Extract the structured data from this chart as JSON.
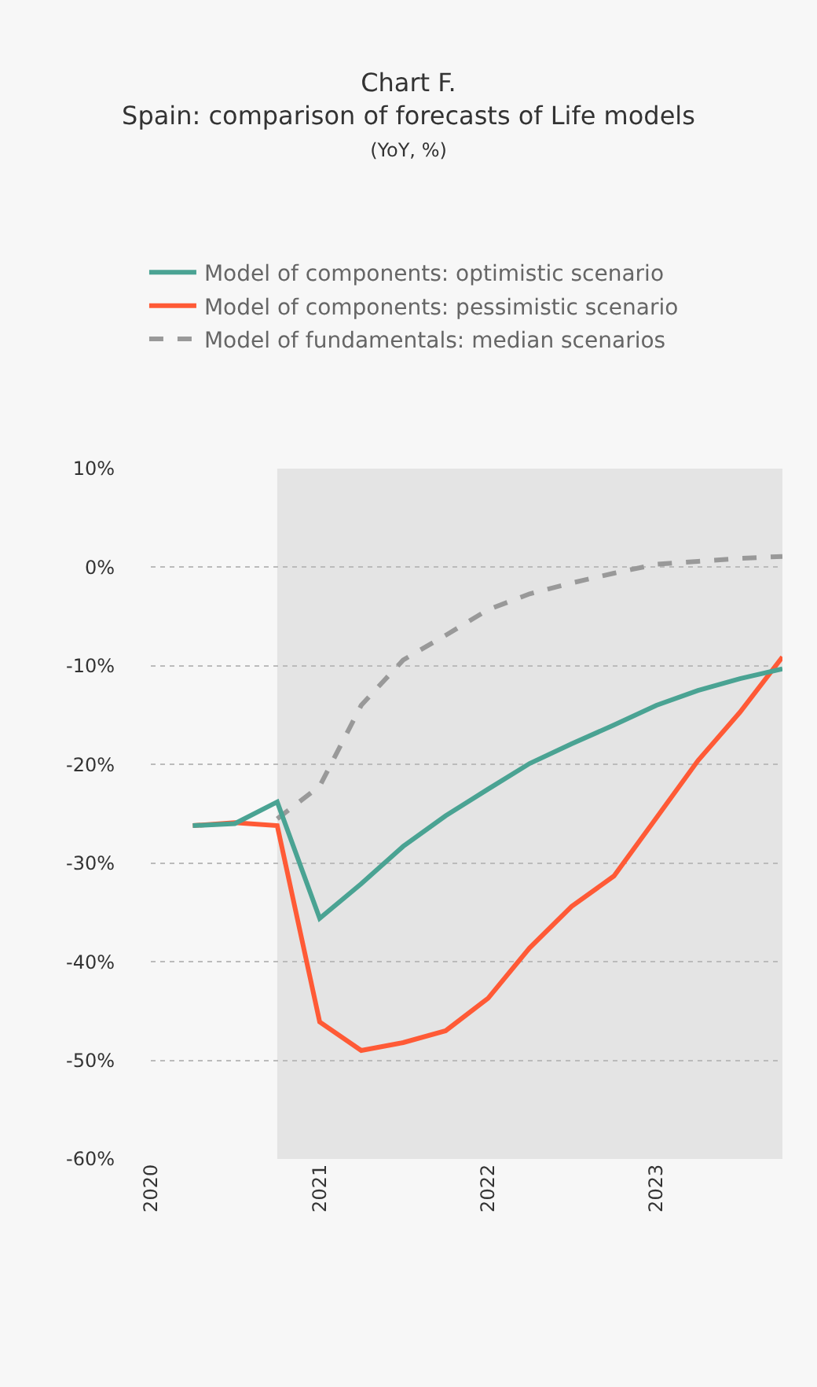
{
  "chart_data": {
    "type": "line",
    "title": "Chart F.\nSpain: comparison of forecasts of Life models",
    "subtitle": "(YoY, %)",
    "x": [
      "2020-04",
      "2020-07",
      "2020-10",
      "2021-01",
      "2021-04",
      "2021-07",
      "2021-10",
      "2022-01",
      "2022-04",
      "2022-07",
      "2022-10",
      "2023-01",
      "2023-04",
      "2023-07",
      "2023-10"
    ],
    "series": [
      {
        "name": "Model of components: optimistic scenario",
        "color": "#4aa393",
        "values": [
          -26.2,
          -26,
          -23.8,
          -35.6,
          -32.1,
          -28.3,
          -25.2,
          -22.5,
          -19.9,
          -17.9,
          -16,
          -14,
          -12.5,
          -11.3,
          -10.3
        ]
      },
      {
        "name": "Model of components: pessimistic scenario",
        "color": "#ff5a36",
        "values": [
          -26.2,
          -25.9,
          -26.2,
          -46.1,
          -49,
          -48.2,
          -47,
          -43.7,
          -38.6,
          -34.4,
          -31.3,
          -25.4,
          -19.6,
          -14.7,
          -9.1
        ]
      },
      {
        "name": "Model of fundamentals: median scenarios",
        "color": "#999999",
        "line_style": "dashed",
        "values": [
          null,
          null,
          -25.5,
          -22.2,
          -14,
          -9.4,
          -6.9,
          -4.3,
          -2.7,
          -1.6,
          -0.6,
          0.3,
          0.6,
          0.9,
          1.1
        ]
      }
    ],
    "xlim": [
      "2020-01",
      "2023-10"
    ],
    "xticks": [
      {
        "value": "2020",
        "label": "2020"
      },
      {
        "value": "2021",
        "label": "2021"
      },
      {
        "value": "2022",
        "label": "2022"
      },
      {
        "value": "2023",
        "label": "2023"
      }
    ],
    "ylim": [
      -60,
      10
    ],
    "yticks": [
      {
        "value": -60,
        "label": "-60%"
      },
      {
        "value": -50,
        "label": "-50%"
      },
      {
        "value": -40,
        "label": "-40%"
      },
      {
        "value": -30,
        "label": "-30%"
      },
      {
        "value": -20,
        "label": "-20%"
      },
      {
        "value": -10,
        "label": "-10%"
      },
      {
        "value": 0,
        "label": "0%"
      },
      {
        "value": 10,
        "label": "10%"
      }
    ],
    "bands": [
      {
        "axis": "x",
        "from": "2020-10",
        "to": "2023-10",
        "color": "#e4e4e4"
      }
    ],
    "grid": "y",
    "legend": "top",
    "line_style": "solid",
    "marker": "none"
  }
}
